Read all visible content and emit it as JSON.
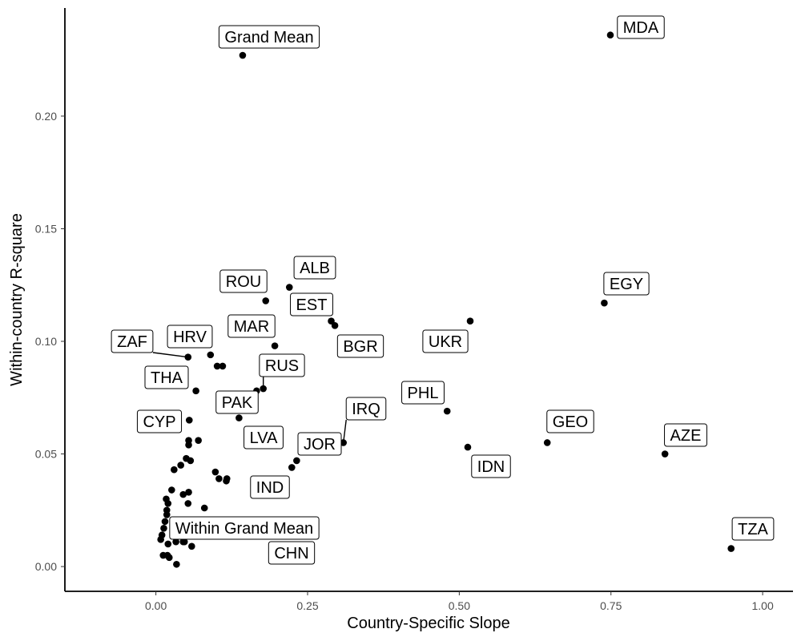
{
  "chart_data": {
    "type": "scatter",
    "title": "",
    "xlabel": "Country-Specific Slope",
    "ylabel": "Within-country R-square",
    "xlim": [
      -0.15,
      1.05
    ],
    "ylim": [
      -0.011,
      0.248
    ],
    "x_ticks": [
      0.0,
      0.25,
      0.5,
      0.75,
      1.0
    ],
    "x_tick_labels": [
      "0.00",
      "0.25",
      "0.50",
      "0.75",
      "1.00"
    ],
    "y_ticks": [
      0.0,
      0.05,
      0.1,
      0.15,
      0.2
    ],
    "y_tick_labels": [
      "0.00",
      "0.05",
      "0.10",
      "0.15",
      "0.20"
    ],
    "grid": false,
    "point_color": "#000000",
    "labeled_points": [
      {
        "label": "Grand Mean",
        "x": 0.143,
        "y": 0.227
      },
      {
        "label": "MDA",
        "x": 0.749,
        "y": 0.236
      },
      {
        "label": "ALB",
        "x": 0.22,
        "y": 0.124
      },
      {
        "label": "ROU",
        "x": 0.181,
        "y": 0.118
      },
      {
        "label": "EGY",
        "x": 0.739,
        "y": 0.117
      },
      {
        "label": "EST",
        "x": 0.289,
        "y": 0.109
      },
      {
        "label": "BGR",
        "x": 0.295,
        "y": 0.107
      },
      {
        "label": "UKR",
        "x": 0.518,
        "y": 0.109
      },
      {
        "label": "MAR",
        "x": 0.196,
        "y": 0.098
      },
      {
        "label": "ZAF",
        "x": 0.053,
        "y": 0.093
      },
      {
        "label": "HRV",
        "x": 0.09,
        "y": 0.094
      },
      {
        "label": "RUS",
        "x": 0.177,
        "y": 0.079
      },
      {
        "label": "THA",
        "x": 0.066,
        "y": 0.078
      },
      {
        "label": "PAK",
        "x": 0.137,
        "y": 0.066
      },
      {
        "label": "PHL",
        "x": 0.48,
        "y": 0.069
      },
      {
        "label": "IRQ",
        "x": 0.309,
        "y": 0.055
      },
      {
        "label": "CYP",
        "x": 0.055,
        "y": 0.065
      },
      {
        "label": "LVA",
        "x": 0.166,
        "y": 0.078
      },
      {
        "label": "JOR",
        "x": 0.232,
        "y": 0.047
      },
      {
        "label": "GEO",
        "x": 0.645,
        "y": 0.055
      },
      {
        "label": "IDN",
        "x": 0.514,
        "y": 0.053
      },
      {
        "label": "AZE",
        "x": 0.839,
        "y": 0.05
      },
      {
        "label": "IND",
        "x": 0.116,
        "y": 0.038
      },
      {
        "label": "Within Grand Mean",
        "x": 0.045,
        "y": 0.011
      },
      {
        "label": "CHN",
        "x": 0.059,
        "y": 0.009
      },
      {
        "label": "TZA",
        "x": 0.948,
        "y": 0.008
      }
    ],
    "other_points": [
      {
        "x": 0.101,
        "y": 0.089
      },
      {
        "x": 0.11,
        "y": 0.089
      },
      {
        "x": 0.224,
        "y": 0.044
      },
      {
        "x": 0.054,
        "y": 0.056
      },
      {
        "x": 0.054,
        "y": 0.054
      },
      {
        "x": 0.07,
        "y": 0.056
      },
      {
        "x": 0.05,
        "y": 0.048
      },
      {
        "x": 0.057,
        "y": 0.047
      },
      {
        "x": 0.041,
        "y": 0.045
      },
      {
        "x": 0.03,
        "y": 0.043
      },
      {
        "x": 0.098,
        "y": 0.042
      },
      {
        "x": 0.104,
        "y": 0.039
      },
      {
        "x": 0.117,
        "y": 0.039
      },
      {
        "x": 0.026,
        "y": 0.034
      },
      {
        "x": 0.054,
        "y": 0.033
      },
      {
        "x": 0.045,
        "y": 0.032
      },
      {
        "x": 0.017,
        "y": 0.03
      },
      {
        "x": 0.02,
        "y": 0.028
      },
      {
        "x": 0.053,
        "y": 0.028
      },
      {
        "x": 0.08,
        "y": 0.026
      },
      {
        "x": 0.018,
        "y": 0.025
      },
      {
        "x": 0.018,
        "y": 0.023
      },
      {
        "x": 0.015,
        "y": 0.02
      },
      {
        "x": 0.013,
        "y": 0.017
      },
      {
        "x": 0.01,
        "y": 0.014
      },
      {
        "x": 0.008,
        "y": 0.012
      },
      {
        "x": 0.02,
        "y": 0.01
      },
      {
        "x": 0.033,
        "y": 0.011
      },
      {
        "x": 0.047,
        "y": 0.011
      },
      {
        "x": 0.012,
        "y": 0.005
      },
      {
        "x": 0.019,
        "y": 0.005
      },
      {
        "x": 0.022,
        "y": 0.004
      },
      {
        "x": 0.034,
        "y": 0.001
      }
    ]
  }
}
